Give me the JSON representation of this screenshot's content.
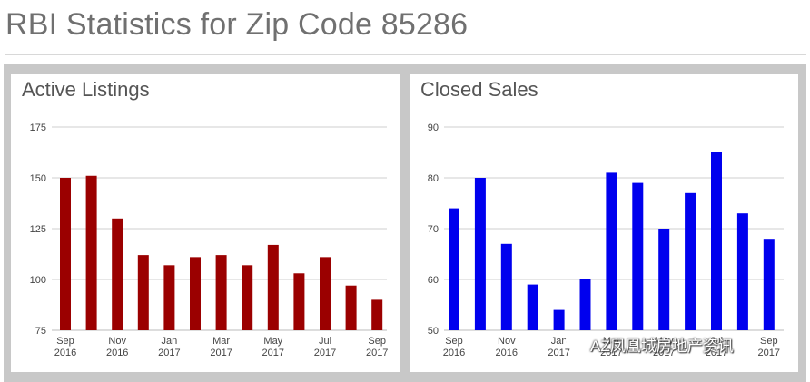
{
  "page": {
    "title": "RBI Statistics for Zip Code 85286"
  },
  "watermark": {
    "text": "AZ凤凰城房地产资讯",
    "icon": "wechat-icon"
  },
  "chart_data": [
    {
      "type": "bar",
      "title": "Active Listings",
      "color": "#9b0000",
      "ylim": [
        75,
        175
      ],
      "yticks": [
        75,
        100,
        125,
        150,
        175
      ],
      "grid": true,
      "categories": [
        "Sep 2016",
        "Oct 2016",
        "Nov 2016",
        "Dec 2016",
        "Jan 2017",
        "Feb 2017",
        "Mar 2017",
        "Apr 2017",
        "May 2017",
        "Jun 2017",
        "Jul 2017",
        "Aug 2017",
        "Sep 2017"
      ],
      "values": [
        150,
        151,
        130,
        112,
        107,
        111,
        112,
        107,
        117,
        103,
        111,
        97,
        90
      ],
      "xtick_labels": [
        {
          "index": 0,
          "month": "Sep",
          "year": "2016"
        },
        {
          "index": 2,
          "month": "Nov",
          "year": "2016"
        },
        {
          "index": 4,
          "month": "Jan",
          "year": "2017"
        },
        {
          "index": 6,
          "month": "Mar",
          "year": "2017"
        },
        {
          "index": 8,
          "month": "May",
          "year": "2017"
        },
        {
          "index": 10,
          "month": "Jul",
          "year": "2017"
        },
        {
          "index": 12,
          "month": "Sep",
          "year": "2017"
        }
      ]
    },
    {
      "type": "bar",
      "title": "Closed Sales",
      "color": "#0000ee",
      "ylim": [
        50,
        90
      ],
      "yticks": [
        50,
        60,
        70,
        80,
        90
      ],
      "grid": true,
      "categories": [
        "Sep 2016",
        "Oct 2016",
        "Nov 2016",
        "Dec 2016",
        "Jan 2017",
        "Feb 2017",
        "Mar 2017",
        "Apr 2017",
        "May 2017",
        "Jun 2017",
        "Jul 2017",
        "Aug 2017",
        "Sep 2017"
      ],
      "values": [
        74,
        80,
        67,
        59,
        54,
        60,
        81,
        79,
        70,
        77,
        85,
        73,
        68
      ],
      "xtick_labels": [
        {
          "index": 0,
          "month": "Sep",
          "year": "2016"
        },
        {
          "index": 2,
          "month": "Nov",
          "year": "2016"
        },
        {
          "index": 4,
          "month": "Jan",
          "year": "2017"
        },
        {
          "index": 6,
          "month": "Mar",
          "year": "2017"
        },
        {
          "index": 8,
          "month": "May",
          "year": "2017"
        },
        {
          "index": 10,
          "month": "Jul",
          "year": "2017"
        },
        {
          "index": 12,
          "month": "Sep",
          "year": "2017"
        }
      ]
    }
  ]
}
